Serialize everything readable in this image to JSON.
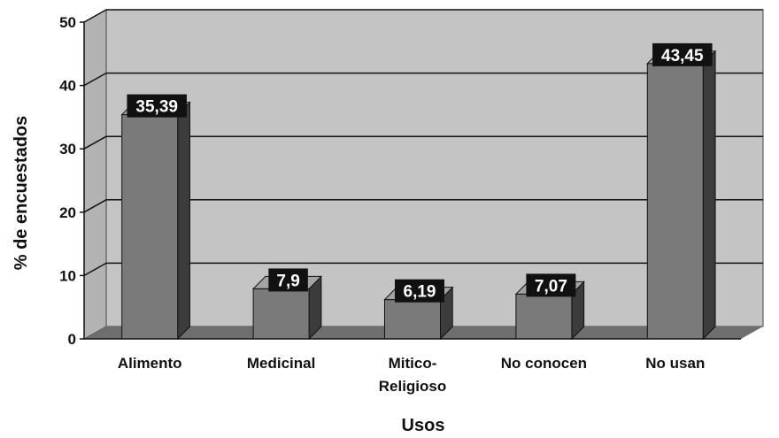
{
  "chart_data": {
    "type": "bar",
    "title": "",
    "xlabel": "Usos",
    "ylabel": "% de encuestados",
    "categories": [
      "Alimento",
      "Medicinal",
      "Mitico-Religioso",
      "No conocen",
      "No usan"
    ],
    "category_label_lines": [
      [
        "Alimento"
      ],
      [
        "Medicinal"
      ],
      [
        "Mitico-",
        "Religioso"
      ],
      [
        "No conocen"
      ],
      [
        "No usan"
      ]
    ],
    "values": [
      35.39,
      7.9,
      6.19,
      7.07,
      43.45
    ],
    "data_labels": [
      "35,39",
      "7,9",
      "6,19",
      "7,07",
      "43,45"
    ],
    "ylim": [
      0,
      50
    ],
    "yticks": [
      0,
      10,
      20,
      30,
      40,
      50
    ],
    "grid": true,
    "legend": "none",
    "style": "3d-column",
    "colors": {
      "bar_front": "#7a7a7a",
      "bar_side": "#3c3c3c",
      "bar_top": "#a4a4a4",
      "plot_wall": "#c4c4c4",
      "floor": "#6e6e6e",
      "gridline": "#111111",
      "label_bg": "#111111"
    }
  }
}
